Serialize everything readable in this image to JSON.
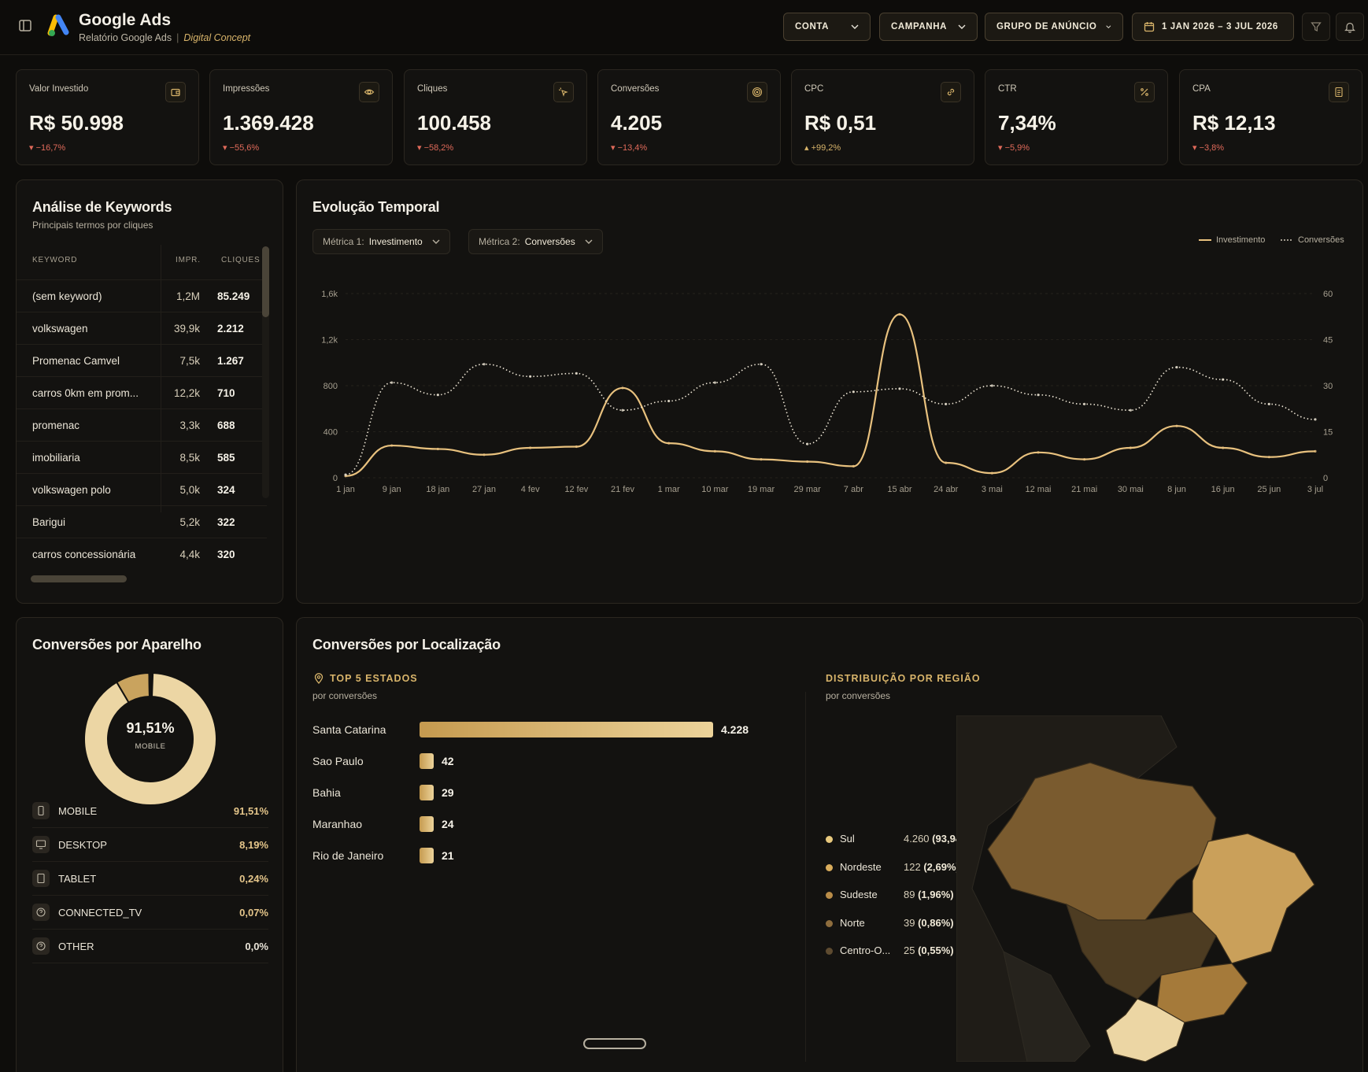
{
  "header": {
    "title": "Google Ads",
    "subtitle": "Relatório Google Ads",
    "subtitle_brand": "Digital Concept",
    "filters": {
      "account": "CONTA",
      "campaign": "CAMPANHA",
      "adgroup": "GRUPO DE ANÚNCIO",
      "date_range": "1 JAN 2026 – 3 JUL 2026"
    }
  },
  "kpis": [
    {
      "label": "Valor Investido",
      "value": "R$ 50.998",
      "delta": "▾ −16,7%",
      "icon": "wallet-icon",
      "trend": "down"
    },
    {
      "label": "Impressões",
      "value": "1.369.428",
      "delta": "▾ −55,6%",
      "icon": "eye-icon",
      "trend": "down"
    },
    {
      "label": "Cliques",
      "value": "100.458",
      "delta": "▾ −58,2%",
      "icon": "cursor-click-icon",
      "trend": "down"
    },
    {
      "label": "Conversões",
      "value": "4.205",
      "delta": "▾ −13,4%",
      "icon": "target-icon",
      "trend": "down"
    },
    {
      "label": "CPC",
      "value": "R$ 0,51",
      "delta": "▴ +99,2%",
      "icon": "link-icon",
      "trend": "up"
    },
    {
      "label": "CTR",
      "value": "7,34%",
      "delta": "▾ −5,9%",
      "icon": "percent-icon",
      "trend": "down"
    },
    {
      "label": "CPA",
      "value": "R$ 12,13",
      "delta": "▾ −3,8%",
      "icon": "receipt-icon",
      "trend": "down"
    }
  ],
  "keywords": {
    "title": "Análise de Keywords",
    "subtitle": "Principais termos por cliques",
    "columns": [
      "KEYWORD",
      "IMPR.",
      "CLIQUES"
    ],
    "rows": [
      {
        "keyword": "(sem keyword)",
        "impr": "1,2M",
        "clicks": "85.249"
      },
      {
        "keyword": "volkswagen",
        "impr": "39,9k",
        "clicks": "2.212"
      },
      {
        "keyword": "Promenac Camvel",
        "impr": "7,5k",
        "clicks": "1.267"
      },
      {
        "keyword": "carros 0km em prom...",
        "impr": "12,2k",
        "clicks": "710"
      },
      {
        "keyword": "promenac",
        "impr": "3,3k",
        "clicks": "688"
      },
      {
        "keyword": "imobiliaria",
        "impr": "8,5k",
        "clicks": "585"
      },
      {
        "keyword": "volkswagen polo",
        "impr": "5,0k",
        "clicks": "324"
      },
      {
        "keyword": "Barigui",
        "impr": "5,2k",
        "clicks": "322"
      },
      {
        "keyword": "carros concessionária",
        "impr": "4,4k",
        "clicks": "320"
      }
    ]
  },
  "timeline": {
    "title": "Evolução Temporal",
    "metric1_label": "Métrica 1:",
    "metric1_value": "Investimento",
    "metric2_label": "Métrica 2:",
    "metric2_value": "Conversões",
    "legend": [
      "Investimento",
      "Conversões"
    ]
  },
  "chart_data": {
    "type": "line",
    "x": [
      "1 jan",
      "9 jan",
      "18 jan",
      "27 jan",
      "4 fev",
      "12 fev",
      "21 fev",
      "1 mar",
      "10 mar",
      "19 mar",
      "29 mar",
      "7 abr",
      "15 abr",
      "24 abr",
      "3 mai",
      "12 mai",
      "21 mai",
      "30 mai",
      "8 jun",
      "16 jun",
      "25 jun",
      "3 jul"
    ],
    "y_left_ticks": [
      "0",
      "400",
      "800",
      "1,2k",
      "1,6k"
    ],
    "y_right_ticks": [
      "0",
      "15",
      "30",
      "45",
      "60"
    ],
    "y_left_range": [
      0,
      1600
    ],
    "y_right_range": [
      0,
      60
    ],
    "series": [
      {
        "name": "Investimento",
        "axis": "left",
        "style": "solid",
        "color": "#e8c17e",
        "values": [
          15,
          280,
          250,
          200,
          260,
          270,
          780,
          300,
          230,
          160,
          140,
          100,
          1420,
          130,
          40,
          220,
          160,
          260,
          450,
          260,
          180,
          230
        ]
      },
      {
        "name": "Conversões",
        "axis": "right",
        "style": "dotted",
        "color": "#efe7d6",
        "values": [
          1,
          31,
          27,
          37,
          33,
          34,
          22,
          25,
          31,
          37,
          11,
          28,
          29,
          24,
          30,
          27,
          24,
          22,
          36,
          32,
          24,
          19
        ]
      }
    ],
    "grid": true
  },
  "devices": {
    "title": "Conversões por Aparelho",
    "center_value": "91,51%",
    "center_label": "MOBILE",
    "items": [
      {
        "name": "MOBILE",
        "value": "91,51%",
        "pct": 91.51,
        "icon": "smartphone-icon"
      },
      {
        "name": "DESKTOP",
        "value": "8,19%",
        "pct": 8.19,
        "icon": "monitor-icon"
      },
      {
        "name": "TABLET",
        "value": "0,24%",
        "pct": 0.24,
        "icon": "tablet-icon"
      },
      {
        "name": "CONNECTED_TV",
        "value": "0,07%",
        "pct": 0.07,
        "icon": "help-circle-icon"
      },
      {
        "name": "OTHER",
        "value": "0,0%",
        "pct": 0.0,
        "icon": "help-circle-icon"
      }
    ]
  },
  "location": {
    "title": "Conversões por Localização",
    "states_title": "TOP 5 ESTADOS",
    "states_sub": "por conversões",
    "states": [
      {
        "name": "Santa Catarina",
        "value": "4.228",
        "num": 4228
      },
      {
        "name": "Sao Paulo",
        "value": "42",
        "num": 42
      },
      {
        "name": "Bahia",
        "value": "29",
        "num": 29
      },
      {
        "name": "Maranhao",
        "value": "24",
        "num": 24
      },
      {
        "name": "Rio de Janeiro",
        "value": "21",
        "num": 21
      }
    ],
    "regions_title": "DISTRIBUIÇÃO POR REGIÃO",
    "regions_sub": "por conversões",
    "regions": [
      {
        "name": "Sul",
        "value": "4.260",
        "pct": "(93,94%)",
        "color": "#e8c97e"
      },
      {
        "name": "Nordeste",
        "value": "122",
        "pct": "(2,69%)",
        "color": "#d9ad5c"
      },
      {
        "name": "Sudeste",
        "value": "89",
        "pct": "(1,96%)",
        "color": "#b98c48"
      },
      {
        "name": "Norte",
        "value": "39",
        "pct": "(0,86%)",
        "color": "#8e6d3d"
      },
      {
        "name": "Centro-O...",
        "value": "25",
        "pct": "(0,55%)",
        "color": "#5e4b30"
      }
    ]
  }
}
